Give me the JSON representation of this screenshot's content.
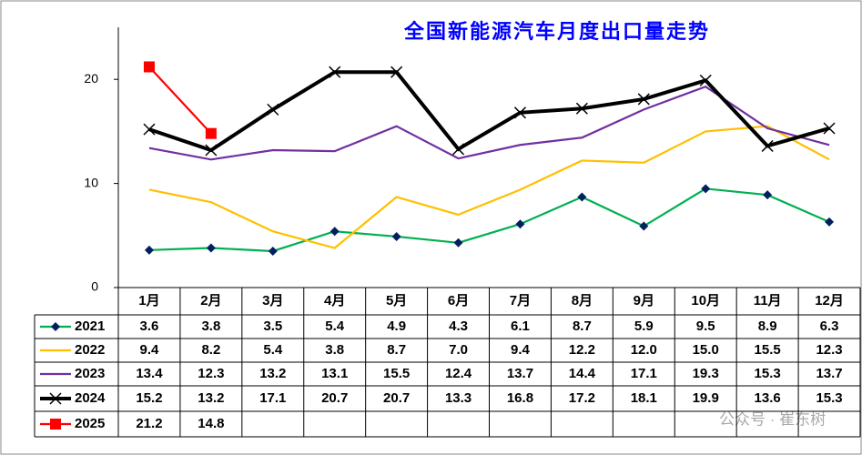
{
  "chart_data": {
    "type": "line",
    "title": "全国新能源汽车月度出口量走势",
    "categories": [
      "1月",
      "2月",
      "3月",
      "4月",
      "5月",
      "6月",
      "7月",
      "8月",
      "9月",
      "10月",
      "11月",
      "12月"
    ],
    "series": [
      {
        "name": "2021",
        "color": "#00b050",
        "marker": "diamond",
        "marker_color": "#002060",
        "values": [
          3.6,
          3.8,
          3.5,
          5.4,
          4.9,
          4.3,
          6.1,
          8.7,
          5.9,
          9.5,
          8.9,
          6.3
        ],
        "value_labels": [
          "3.6",
          "3.8",
          "3.5",
          "5.4",
          "4.9",
          "4.3",
          "6.1",
          "8.7",
          "5.9",
          "9.5",
          "8.9",
          "6.3"
        ]
      },
      {
        "name": "2022",
        "color": "#ffc000",
        "marker": "none",
        "values": [
          9.4,
          8.2,
          5.4,
          3.8,
          8.7,
          7.0,
          9.4,
          12.2,
          12.0,
          15.0,
          15.5,
          12.3
        ],
        "value_labels": [
          "9.4",
          "8.2",
          "5.4",
          "3.8",
          "8.7",
          "7.0",
          "9.4",
          "12.2",
          "12.0",
          "15.0",
          "15.5",
          "12.3"
        ]
      },
      {
        "name": "2023",
        "color": "#7030a0",
        "marker": "none",
        "values": [
          13.4,
          12.3,
          13.2,
          13.1,
          15.5,
          12.4,
          13.7,
          14.4,
          17.1,
          19.3,
          15.3,
          13.7
        ],
        "value_labels": [
          "13.4",
          "12.3",
          "13.2",
          "13.1",
          "15.5",
          "12.4",
          "13.7",
          "14.4",
          "17.1",
          "19.3",
          "15.3",
          "13.7"
        ]
      },
      {
        "name": "2024",
        "color": "#000000",
        "marker": "x",
        "marker_color": "#000000",
        "width": 4,
        "values": [
          15.2,
          13.2,
          17.1,
          20.7,
          20.7,
          13.3,
          16.8,
          17.2,
          18.1,
          19.9,
          13.6,
          15.3
        ],
        "value_labels": [
          "15.2",
          "13.2",
          "17.1",
          "20.7",
          "20.7",
          "13.3",
          "16.8",
          "17.2",
          "18.1",
          "19.9",
          "13.6",
          "15.3"
        ]
      },
      {
        "name": "2025",
        "color": "#ff0000",
        "marker": "square",
        "marker_color": "#ff0000",
        "values": [
          21.2,
          14.8,
          null,
          null,
          null,
          null,
          null,
          null,
          null,
          null,
          null,
          null
        ],
        "value_labels": [
          "21.2",
          "14.8",
          null,
          null,
          null,
          null,
          null,
          null,
          null,
          null,
          null,
          null
        ]
      }
    ],
    "ylim": [
      0,
      25
    ],
    "yticks": [
      0,
      10,
      20
    ],
    "grid": false,
    "watermark": "公众号 · 崔东树"
  }
}
